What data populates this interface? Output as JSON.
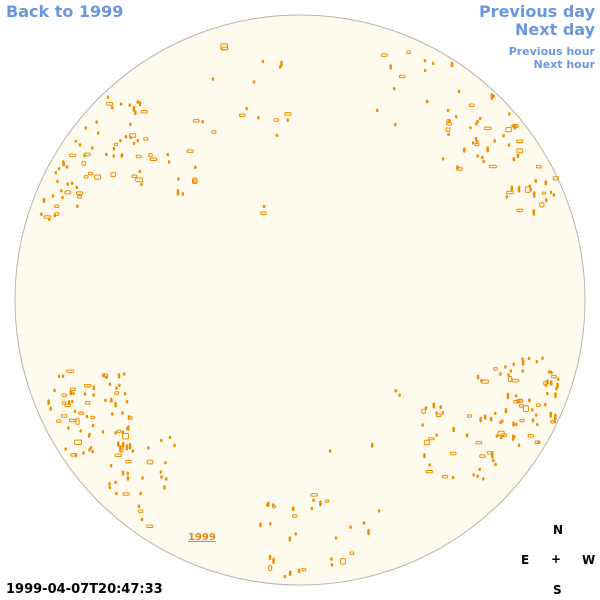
{
  "nav": {
    "back": "Back to 1999",
    "previous_day": "Previous day",
    "next_day": "Next day",
    "previous_hour": "Previous hour",
    "next_hour": "Next hour"
  },
  "map": {
    "year_label": "1999",
    "disk_color": "#fffaee",
    "contour_color": "#f08c00"
  },
  "compass": {
    "north": "N",
    "east": "E",
    "center": "+",
    "west": "W",
    "south": "S"
  },
  "timestamp": "1999-04-07T20:47:33"
}
